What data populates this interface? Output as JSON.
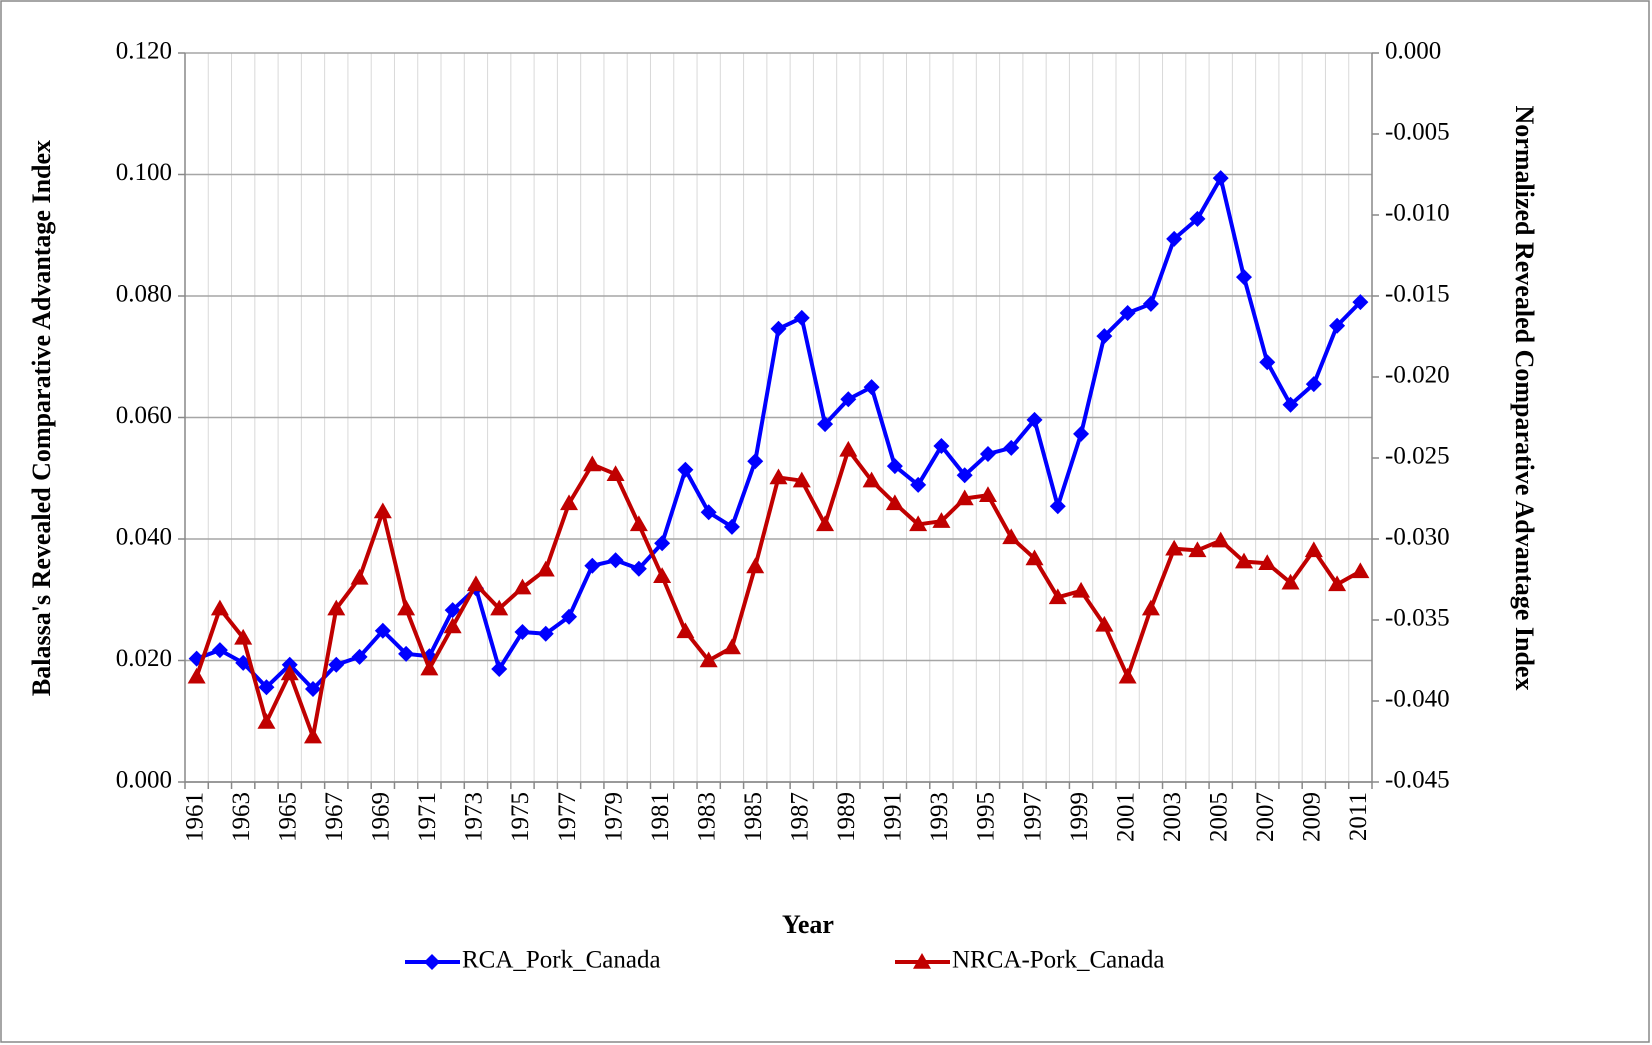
{
  "chart_data": {
    "type": "line",
    "xlabel": "Year",
    "ylabel": "Balassa's Revealed Comparative Advantage Index",
    "y2label": "Normalized Revealed Comparative Advantage Index",
    "categories": [
      "1961",
      null,
      "1963",
      null,
      "1965",
      null,
      "1967",
      null,
      "1969",
      null,
      "1971",
      null,
      "1973",
      null,
      "1975",
      null,
      "1977",
      null,
      "1979",
      null,
      "1981",
      null,
      "1983",
      null,
      "1985",
      null,
      "1987",
      null,
      "1989",
      null,
      "1991",
      null,
      "1993",
      null,
      "1995",
      null,
      "1997",
      null,
      "1999",
      null,
      "2001",
      null,
      "2003",
      null,
      "2005",
      null,
      "2007",
      null,
      "2009",
      null,
      "2011"
    ],
    "ylim": [
      0,
      0.12
    ],
    "yticks": [
      {
        "value": 0,
        "label": "0.000"
      },
      {
        "value": 0.02,
        "label": "0.020"
      },
      {
        "value": 0.04,
        "label": "0.040"
      },
      {
        "value": 0.06,
        "label": "0.060"
      },
      {
        "value": 0.08,
        "label": "0.080"
      },
      {
        "value": 0.1,
        "label": "0.100"
      },
      {
        "value": 0.12,
        "label": "0.120"
      }
    ],
    "y2lim": [
      -0.045,
      0
    ],
    "y2ticks": [
      {
        "value": -0.045,
        "label": "-0.045"
      },
      {
        "value": -0.04,
        "label": "-0.040"
      },
      {
        "value": -0.035,
        "label": "-0.035"
      },
      {
        "value": -0.03,
        "label": "-0.030"
      },
      {
        "value": -0.025,
        "label": "-0.025"
      },
      {
        "value": -0.02,
        "label": "-0.020"
      },
      {
        "value": -0.015,
        "label": "-0.015"
      },
      {
        "value": -0.01,
        "label": "-0.010"
      },
      {
        "value": -0.005,
        "label": "-0.005"
      },
      {
        "value": 0,
        "label": "0.000"
      }
    ],
    "grid": true,
    "legend": "bottom",
    "series": [
      {
        "name": "RCA_Pork_Canada",
        "color": "#0000ff",
        "marker": "diamond",
        "axis": "y",
        "values": [
          0.0203,
          0.0217,
          0.0196,
          0.0156,
          0.0193,
          0.0153,
          0.0193,
          0.0206,
          0.0249,
          0.0211,
          0.0207,
          0.0283,
          0.0319,
          0.0186,
          0.0247,
          0.0244,
          0.0272,
          0.0356,
          0.0365,
          0.0351,
          0.0393,
          0.0514,
          0.0444,
          0.042,
          0.0528,
          0.0746,
          0.0764,
          0.0589,
          0.063,
          0.065,
          0.052,
          0.0489,
          0.0553,
          0.0505,
          0.054,
          0.055,
          0.0596,
          0.0454,
          0.0573,
          0.0734,
          0.0772,
          0.0787,
          0.0894,
          0.0927,
          0.0994,
          0.0831,
          0.0691,
          0.0621,
          0.0655,
          0.0751,
          0.079
        ]
      },
      {
        "name": "NRCA-Pork_Canada",
        "color": "#c00000",
        "marker": "triangle",
        "axis": "y2",
        "values": [
          -0.0385,
          -0.0343,
          -0.0361,
          -0.0413,
          -0.0383,
          -0.0422,
          -0.0343,
          -0.0324,
          -0.0283,
          -0.0343,
          -0.038,
          -0.0354,
          -0.0328,
          -0.0343,
          -0.033,
          -0.0319,
          -0.0278,
          -0.0254,
          -0.026,
          -0.0291,
          -0.0323,
          -0.0357,
          -0.0375,
          -0.0367,
          -0.0317,
          -0.0262,
          -0.0264,
          -0.0291,
          -0.0245,
          -0.0264,
          -0.0278,
          -0.0291,
          -0.0289,
          -0.0275,
          -0.0273,
          -0.0299,
          -0.0312,
          -0.0336,
          -0.0332,
          -0.0353,
          -0.0385,
          -0.0343,
          -0.0306,
          -0.0307,
          -0.0301,
          -0.0314,
          -0.0315,
          -0.0327,
          -0.0307,
          -0.0328,
          -0.032
        ]
      }
    ]
  }
}
